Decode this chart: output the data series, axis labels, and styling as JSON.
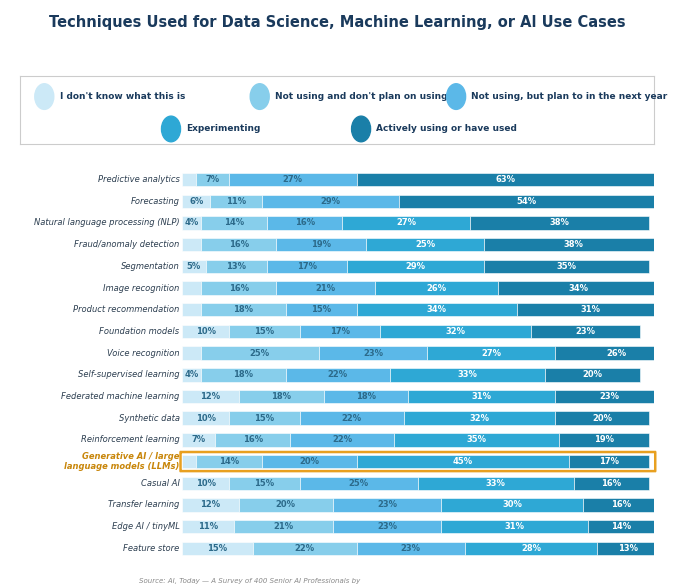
{
  "title": "Techniques Used for Data Science, Machine Learning, or Al Use Cases",
  "categories": [
    "Predictive analytics",
    "Forecasting",
    "Natural language processing (NLP)",
    "Fraud/anomaly detection",
    "Segmentation",
    "Image recognition",
    "Product recommendation",
    "Foundation models",
    "Voice recognition",
    "Self-supervised learning",
    "Federated machine learning",
    "Synthetic data",
    "Reinforcement learning",
    "Generative AI / large\nlanguage models (LLMs)",
    "Casual AI",
    "Transfer learning",
    "Edge AI / tinyML",
    "Feature store"
  ],
  "data": [
    [
      3,
      7,
      27,
      0,
      63
    ],
    [
      6,
      11,
      29,
      0,
      54
    ],
    [
      4,
      14,
      16,
      27,
      38
    ],
    [
      4,
      16,
      19,
      25,
      38
    ],
    [
      5,
      13,
      17,
      29,
      35
    ],
    [
      4,
      16,
      21,
      26,
      34
    ],
    [
      4,
      18,
      15,
      34,
      31
    ],
    [
      10,
      15,
      17,
      32,
      23
    ],
    [
      4,
      25,
      23,
      27,
      26
    ],
    [
      4,
      18,
      22,
      33,
      20
    ],
    [
      12,
      18,
      18,
      31,
      23
    ],
    [
      10,
      15,
      22,
      32,
      20
    ],
    [
      7,
      16,
      22,
      35,
      19
    ],
    [
      3,
      14,
      20,
      45,
      17
    ],
    [
      10,
      15,
      25,
      33,
      16
    ],
    [
      12,
      20,
      23,
      30,
      16
    ],
    [
      11,
      21,
      23,
      31,
      14
    ],
    [
      15,
      22,
      23,
      28,
      13
    ]
  ],
  "show_label": [
    [
      false,
      true,
      true,
      false,
      true
    ],
    [
      true,
      true,
      true,
      false,
      true
    ],
    [
      true,
      true,
      true,
      true,
      true
    ],
    [
      false,
      true,
      true,
      true,
      true
    ],
    [
      true,
      true,
      true,
      true,
      true
    ],
    [
      false,
      true,
      true,
      true,
      true
    ],
    [
      false,
      true,
      true,
      true,
      true
    ],
    [
      true,
      true,
      true,
      true,
      true
    ],
    [
      false,
      true,
      true,
      true,
      true
    ],
    [
      true,
      true,
      true,
      true,
      true
    ],
    [
      true,
      true,
      true,
      true,
      true
    ],
    [
      true,
      true,
      true,
      true,
      true
    ],
    [
      true,
      true,
      true,
      true,
      true
    ],
    [
      true,
      true,
      true,
      true,
      true
    ],
    [
      true,
      true,
      true,
      true,
      true
    ],
    [
      true,
      true,
      true,
      true,
      true
    ],
    [
      true,
      true,
      true,
      true,
      true
    ],
    [
      true,
      true,
      true,
      true,
      true
    ]
  ],
  "colors": [
    "#cce9f7",
    "#87ceeb",
    "#5bb8e8",
    "#2ea8d5",
    "#1a7fa8"
  ],
  "text_colors": [
    "#2c6a8a",
    "#2c6a8a",
    "#2c6a8a",
    "#ffffff",
    "#ffffff"
  ],
  "legend_labels": [
    "I don't know what this is",
    "Not using and don't plan on using",
    "Not using, but plan to in the next year",
    "Experimenting",
    "Actively using or have used"
  ],
  "legend_colors": [
    "#cce9f7",
    "#87ceeb",
    "#5bb8e8",
    "#2ea8d5",
    "#1a7fa8"
  ],
  "highlight_row": 13,
  "highlight_color": "#e8a020",
  "background_color": "#ffffff",
  "bar_height": 0.62,
  "source_text": "Source: AI, Today — A Survey of 400 Senior AI Professionals by"
}
